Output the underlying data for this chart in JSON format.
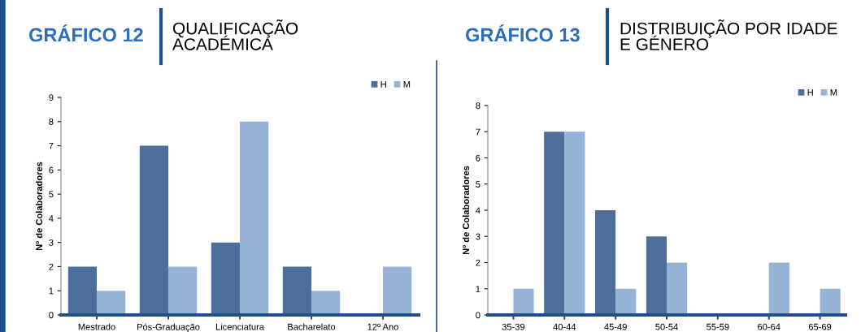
{
  "chart_data": [
    {
      "type": "bar",
      "title": "GRÁFICO 12",
      "subtitle": "QUALIFICAÇÃO\nACADÉMICA",
      "ylabel": "Nº de Colaboradores",
      "categories": [
        "Mestrado",
        "Pós-Graduação",
        "Licenciatura",
        "Bacharelato",
        "12º Ano"
      ],
      "series": [
        {
          "name": "H",
          "color": "#4f6f9b",
          "values": [
            2,
            7,
            3,
            2,
            0
          ]
        },
        {
          "name": "M",
          "color": "#95b3d7",
          "values": [
            1,
            2,
            8,
            1,
            2
          ]
        }
      ],
      "ylim": [
        0,
        9
      ],
      "yticks": [
        0,
        1,
        2,
        3,
        4,
        5,
        6,
        7,
        8,
        9
      ],
      "grid": false,
      "legend": "top right"
    },
    {
      "type": "bar",
      "title": "GRÁFICO 13",
      "subtitle": "DISTRIBUIÇÃO POR IDADE\nE GÉNERO",
      "ylabel": "Nº de Colaboradores",
      "categories": [
        "35-39",
        "40-44",
        "45-49",
        "50-54",
        "55-59",
        "60-64",
        "65-69"
      ],
      "series": [
        {
          "name": "H",
          "color": "#4f6f9b",
          "values": [
            0,
            7,
            4,
            3,
            0,
            0,
            0
          ]
        },
        {
          "name": "M",
          "color": "#95b3d7",
          "values": [
            1,
            7,
            1,
            2,
            0,
            2,
            1
          ]
        }
      ],
      "ylim": [
        0,
        8
      ],
      "yticks": [
        0,
        1,
        2,
        3,
        4,
        5,
        6,
        7,
        8
      ],
      "grid": false,
      "legend": "top right"
    }
  ]
}
